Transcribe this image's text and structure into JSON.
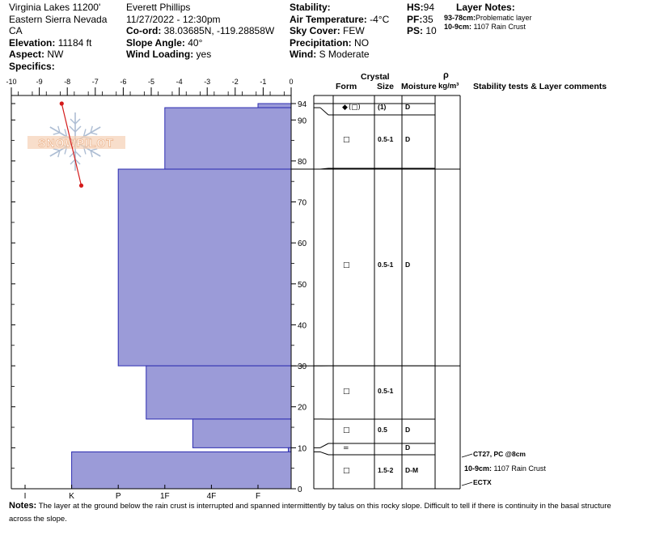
{
  "header": {
    "location": "Virginia Lakes 11200'",
    "range": "Eastern Sierra Nevada",
    "state": "CA",
    "elevation_label": "Elevation:",
    "elevation": "11184 ft",
    "aspect_label": "Aspect:",
    "aspect": "NW",
    "specifics_label": "Specifics:",
    "observer": "Everett Phillips",
    "datetime": "11/27/2022 - 12:30pm",
    "coord_label": "Co-ord:",
    "coord": "38.03685N, -119.28858W",
    "slope_label": "Slope Angle:",
    "slope": "40°",
    "wind_loading_label": "Wind Loading:",
    "wind_loading": "yes",
    "stability_label": "Stability:",
    "air_temp_label": "Air Temperature:",
    "air_temp": "-4°C",
    "sky_label": "Sky Cover:",
    "sky": "FEW",
    "precip_label": "Precipitation:",
    "precip": "NO",
    "wind_label": "Wind:",
    "wind": "S Moderate",
    "hs_label": "HS:",
    "hs": "94",
    "pf_label": "PF:",
    "pf": "35",
    "ps_label": "PS:",
    "ps": "10",
    "layer_notes_label": "Layer Notes:",
    "layer_notes": [
      {
        "range": "93-78cm:",
        "text": "Problematic layer"
      },
      {
        "range": "10-9cm:",
        "text": "1107 Rain Crust"
      }
    ]
  },
  "watermark": "SNOWPILOT",
  "table_headers": {
    "crystal": "Crystal",
    "form": "Form",
    "size": "Size",
    "moisture": "Moisture",
    "rho": "ρ",
    "density": "kg/m³",
    "comments": "Stability tests & Layer comments"
  },
  "chart_data": {
    "type": "bar",
    "temp_axis": {
      "min": -10,
      "max": 0,
      "ticks": [
        -10,
        -9,
        -8,
        -7,
        -6,
        -5,
        -4,
        -3,
        -2,
        -1,
        0
      ]
    },
    "height_axis": {
      "min": 0,
      "max": 94,
      "ticks": [
        0,
        10,
        20,
        30,
        40,
        50,
        60,
        70,
        80,
        90,
        94
      ]
    },
    "hardness_axis": {
      "ticks": [
        "I",
        "K",
        "P",
        "1F",
        "4F",
        "F"
      ]
    },
    "temperature_profile": [
      {
        "height": 94,
        "temp": -8.2
      },
      {
        "height": 74,
        "temp": -7.5
      }
    ],
    "layers": [
      {
        "top": 94,
        "bottom": 93,
        "hardness_index": 5.0,
        "form": "ds",
        "size": "(1)",
        "moisture": "D",
        "form_extra": "(□)"
      },
      {
        "top": 93,
        "bottom": 78,
        "hardness_index": 3.0,
        "form": "□",
        "size": "0.5-1",
        "moisture": "D"
      },
      {
        "top": 78,
        "bottom": 30,
        "hardness_index": 2.0,
        "form": "□",
        "size": "0.5-1",
        "moisture": "D"
      },
      {
        "top": 30,
        "bottom": 17,
        "hardness_index": 2.6,
        "form": "□",
        "size": "0.5-1",
        "moisture": ""
      },
      {
        "top": 17,
        "bottom": 10,
        "hardness_index": 3.6,
        "form": "□",
        "size": "0.5",
        "moisture": "D"
      },
      {
        "top": 10,
        "bottom": 9,
        "hardness_index": 5.65,
        "form": "=",
        "size": "",
        "moisture": "D"
      },
      {
        "top": 9,
        "bottom": 0,
        "hardness_index": 1.0,
        "form": "□",
        "size": "1.5-2",
        "moisture": "D-M"
      }
    ],
    "comments": [
      {
        "height": 8,
        "text": "CT27, PC @8cm",
        "bold": true
      },
      {
        "height": 5,
        "prefix": "10-9cm:",
        "text": "1107 Rain Crust",
        "bold": false
      },
      {
        "height": 1,
        "text": "ECTX",
        "bold": true
      }
    ]
  },
  "notes_label": "Notes:",
  "notes": "The layer at the ground below the rain crust is interrupted and spanned intermittently by talus on this rocky slope. Difficult to tell if there is continuity in the basal structure across the slope."
}
